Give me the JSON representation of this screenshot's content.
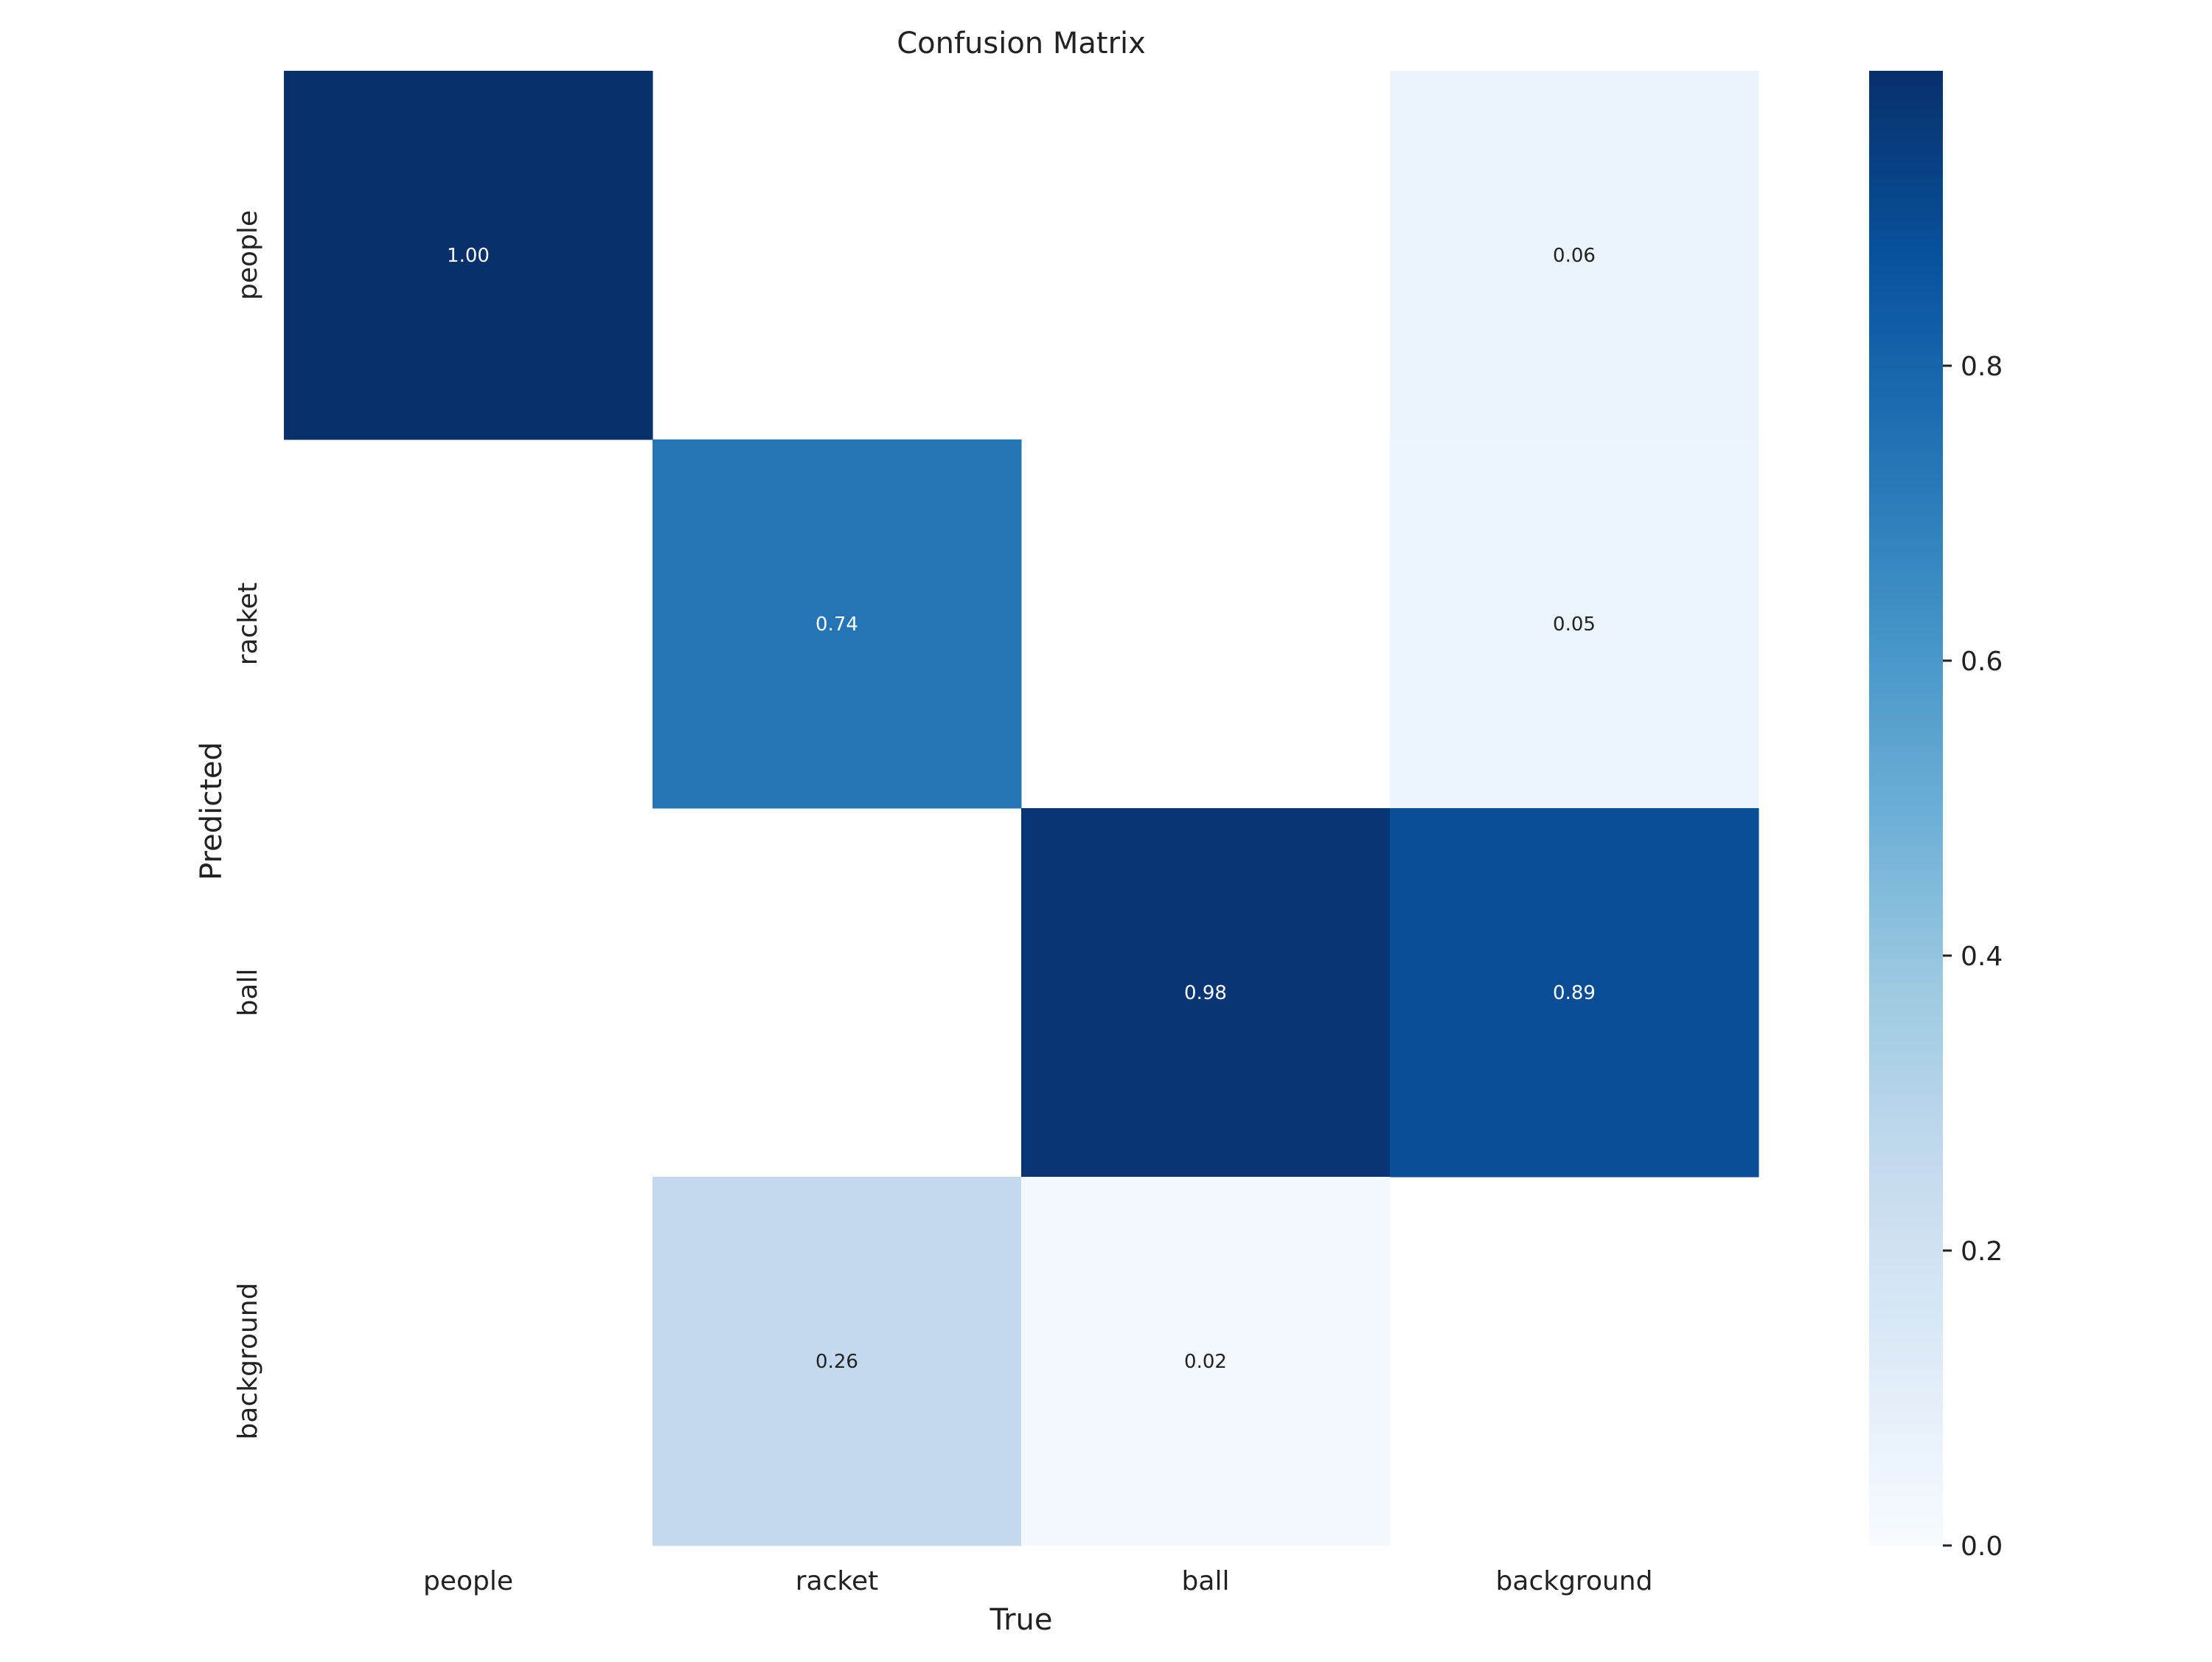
{
  "chart_data": {
    "type": "heatmap",
    "title": "Confusion Matrix",
    "xlabel": "True",
    "ylabel": "Predicted",
    "x_categories": [
      "people",
      "racket",
      "ball",
      "background"
    ],
    "y_categories": [
      "people",
      "racket",
      "ball",
      "background"
    ],
    "values": [
      [
        1.0,
        null,
        null,
        0.06
      ],
      [
        null,
        0.74,
        null,
        0.05
      ],
      [
        null,
        null,
        0.98,
        0.89
      ],
      [
        null,
        0.26,
        0.02,
        null
      ]
    ],
    "value_format": "0.00",
    "colormap": "Blues",
    "vmin": 0.0,
    "vmax": 1.0,
    "colorbar": {
      "ticks": [
        0.0,
        0.2,
        0.4,
        0.6,
        0.8
      ],
      "tick_labels": [
        "0.0",
        "0.2",
        "0.4",
        "0.6",
        "0.8"
      ]
    },
    "grid": false,
    "empty_cell_color": "#ffffff"
  }
}
